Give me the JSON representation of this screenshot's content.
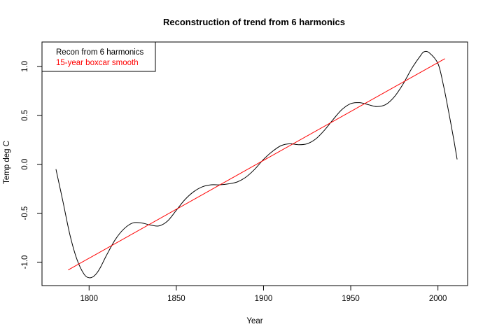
{
  "chart_data": {
    "type": "line",
    "title": "Reconstruction of trend from 6 harmonics",
    "xlabel": "Year",
    "ylabel": "Temp deg C",
    "xlim": [
      1773,
      2017
    ],
    "ylim": [
      -1.24,
      1.25
    ],
    "x_ticks": [
      1800,
      1850,
      1900,
      1950,
      2000
    ],
    "y_ticks": [
      -1.0,
      -0.5,
      0.0,
      0.5,
      1.0
    ],
    "y_tick_labels": [
      "-1.0",
      "-0.5",
      "0.0",
      "0.5",
      "1.0"
    ],
    "grid": false,
    "legend_position": "top-left",
    "series": [
      {
        "name": "Recon from 6 harmonics",
        "color": "#000000",
        "x": [
          1781,
          1785,
          1789,
          1793,
          1797,
          1800,
          1803,
          1806,
          1810,
          1815,
          1820,
          1825,
          1830,
          1835,
          1840,
          1845,
          1850,
          1855,
          1860,
          1865,
          1870,
          1875,
          1880,
          1885,
          1890,
          1895,
          1900,
          1905,
          1910,
          1915,
          1920,
          1925,
          1930,
          1935,
          1940,
          1945,
          1950,
          1955,
          1960,
          1965,
          1970,
          1975,
          1980,
          1985,
          1990,
          1992,
          1995,
          2000,
          2003,
          2006,
          2009,
          2011
        ],
        "y": [
          -0.05,
          -0.38,
          -0.72,
          -0.97,
          -1.12,
          -1.16,
          -1.14,
          -1.07,
          -0.93,
          -0.77,
          -0.66,
          -0.6,
          -0.6,
          -0.62,
          -0.63,
          -0.58,
          -0.47,
          -0.36,
          -0.28,
          -0.23,
          -0.21,
          -0.21,
          -0.2,
          -0.18,
          -0.13,
          -0.05,
          0.05,
          0.13,
          0.19,
          0.21,
          0.2,
          0.21,
          0.26,
          0.35,
          0.46,
          0.56,
          0.62,
          0.63,
          0.61,
          0.59,
          0.61,
          0.69,
          0.82,
          0.98,
          1.11,
          1.15,
          1.14,
          1.03,
          0.82,
          0.55,
          0.26,
          0.05
        ]
      },
      {
        "name": "15-year boxcar smooth",
        "color": "#ff0000",
        "x": [
          1788,
          2004
        ],
        "y": [
          -1.08,
          1.08
        ]
      }
    ]
  }
}
